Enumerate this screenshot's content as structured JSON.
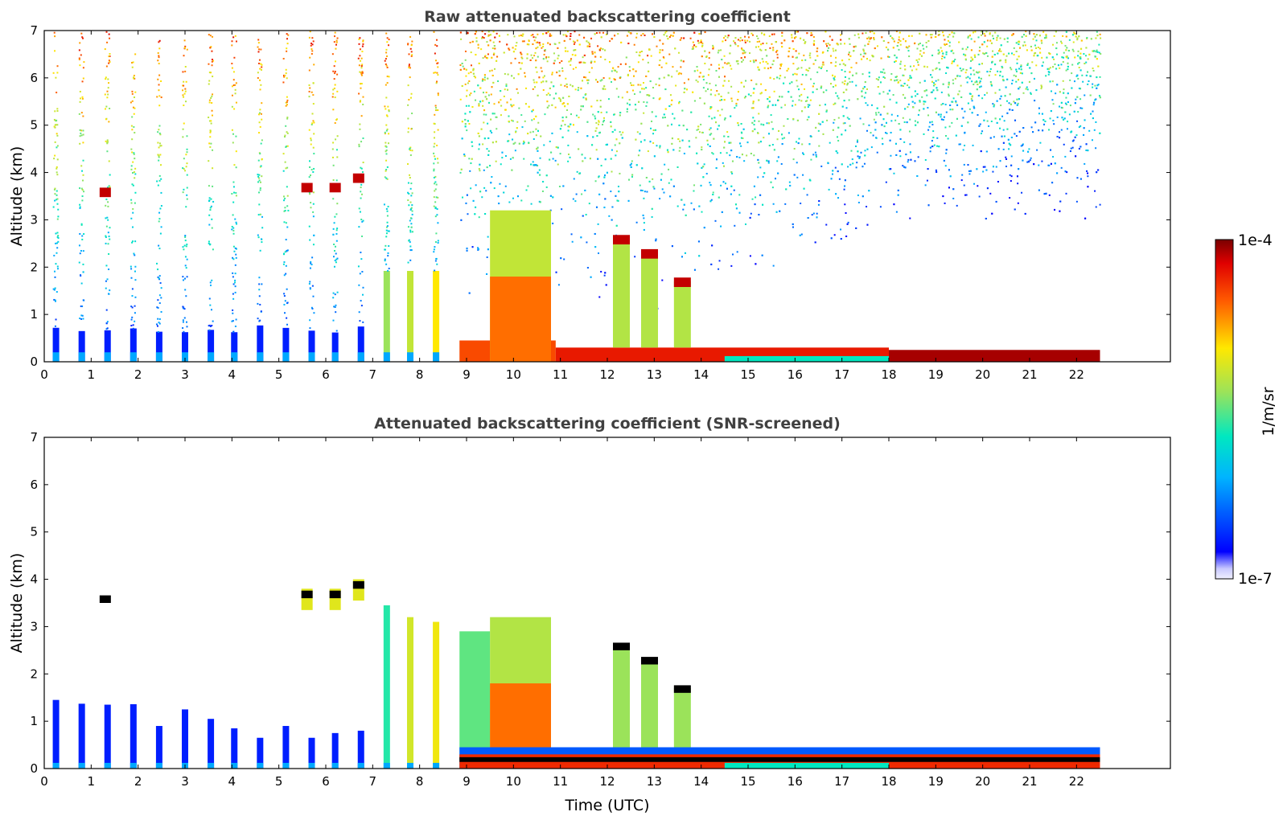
{
  "chart_data": [
    {
      "type": "heatmap",
      "title": "Raw attenuated backscattering coefficient",
      "xlabel": "",
      "ylabel": "Altitude (km)",
      "xlim": [
        0,
        24
      ],
      "ylim": [
        0,
        7
      ],
      "xticks": [
        "0",
        "1",
        "2",
        "3",
        "4",
        "5",
        "6",
        "7",
        "8",
        "9",
        "10",
        "11",
        "12",
        "13",
        "14",
        "15",
        "16",
        "17",
        "18",
        "19",
        "20",
        "21",
        "22"
      ],
      "yticks": [
        "0",
        "1",
        "2",
        "3",
        "4",
        "5",
        "6",
        "7"
      ],
      "data_time_range_hours": [
        0,
        22.5
      ],
      "profile_columns_before_9h": [
        0.25,
        0.8,
        1.35,
        1.9,
        2.45,
        3.0,
        3.55,
        4.05,
        4.6,
        5.15,
        5.7,
        6.2,
        6.75,
        7.3,
        7.8,
        8.35
      ],
      "features": {
        "boundary_layer_top_km": 0.25,
        "clouds": [
          {
            "time": 1.3,
            "altitude_km": 3.6
          },
          {
            "time": 5.6,
            "altitude_km": 3.7
          },
          {
            "time": 6.2,
            "altitude_km": 3.7
          },
          {
            "time": 6.7,
            "altitude_km": 3.9
          },
          {
            "time": 12.3,
            "altitude_km": 2.6
          },
          {
            "time": 12.9,
            "altitude_km": 2.3
          },
          {
            "time": 13.6,
            "altitude_km": 1.7
          }
        ],
        "aerosol_plume": {
          "time_range": [
            9.5,
            10.8
          ],
          "top_km": 3.2
        }
      }
    },
    {
      "type": "heatmap",
      "title": "Attenuated backscattering coefficient (SNR-screened)",
      "xlabel": "Time (UTC)",
      "ylabel": "Altitude (km)",
      "xlim": [
        0,
        24
      ],
      "ylim": [
        0,
        7
      ],
      "xticks": [
        "0",
        "1",
        "2",
        "3",
        "4",
        "5",
        "6",
        "7",
        "8",
        "9",
        "10",
        "11",
        "12",
        "13",
        "14",
        "15",
        "16",
        "17",
        "18",
        "19",
        "20",
        "21",
        "22"
      ],
      "yticks": [
        "0",
        "1",
        "2",
        "3",
        "4",
        "5",
        "6",
        "7"
      ],
      "screened_column_tops_km": [
        1.45,
        1.37,
        1.35,
        1.36,
        0.9,
        1.25,
        1.05,
        0.85,
        0.65,
        0.9,
        0.65,
        0.75,
        0.8,
        3.45,
        3.2,
        3.1
      ]
    }
  ],
  "colorbar": {
    "label": "1/m/sr",
    "max_label": "1e-4",
    "min_label": "1e-7",
    "colormap": "jet"
  }
}
